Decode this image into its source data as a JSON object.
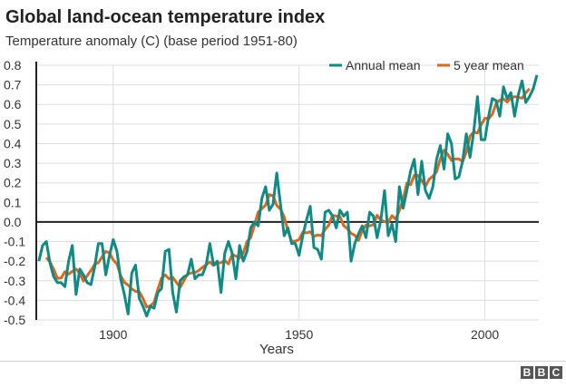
{
  "chart_data": {
    "type": "line",
    "title": "Global land-ocean temperature index",
    "subtitle": "Temperature anomaly (C) (base period 1951-80)",
    "xlabel": "Years",
    "ylabel": "",
    "xlim": [
      1879.3,
      2014.5
    ],
    "ylim": [
      -0.5,
      0.8
    ],
    "xticks": [
      1900,
      1950,
      2000
    ],
    "yticks": [
      0.8,
      0.7,
      0.6,
      0.5,
      0.4,
      0.3,
      0.2,
      0.1,
      0.0,
      -0.1,
      -0.2,
      -0.3,
      -0.4,
      -0.5
    ],
    "grid": true,
    "legend": "top-right",
    "x_start": 1880,
    "series": [
      {
        "name": "Annual mean",
        "color": "#0f8a85",
        "values": [
          -0.2,
          -0.12,
          -0.1,
          -0.21,
          -0.28,
          -0.31,
          -0.31,
          -0.33,
          -0.2,
          -0.12,
          -0.37,
          -0.24,
          -0.27,
          -0.31,
          -0.32,
          -0.23,
          -0.11,
          -0.11,
          -0.27,
          -0.17,
          -0.09,
          -0.15,
          -0.29,
          -0.37,
          -0.47,
          -0.26,
          -0.22,
          -0.39,
          -0.43,
          -0.48,
          -0.43,
          -0.44,
          -0.36,
          -0.34,
          -0.15,
          -0.14,
          -0.36,
          -0.46,
          -0.3,
          -0.28,
          -0.27,
          -0.19,
          -0.29,
          -0.27,
          -0.27,
          -0.22,
          -0.11,
          -0.22,
          -0.2,
          -0.36,
          -0.16,
          -0.1,
          -0.16,
          -0.29,
          -0.12,
          -0.2,
          -0.15,
          -0.03,
          0.0,
          -0.02,
          0.12,
          0.18,
          0.06,
          0.09,
          0.25,
          0.09,
          -0.07,
          -0.03,
          -0.11,
          -0.11,
          -0.17,
          -0.07,
          0.01,
          0.08,
          -0.13,
          -0.14,
          -0.19,
          0.05,
          0.06,
          0.03,
          -0.03,
          0.06,
          0.03,
          0.05,
          -0.2,
          -0.11,
          -0.06,
          -0.02,
          -0.08,
          0.05,
          0.03,
          -0.08,
          0.01,
          0.16,
          -0.07,
          -0.01,
          -0.1,
          0.18,
          0.07,
          0.16,
          0.26,
          0.32,
          0.14,
          0.31,
          0.16,
          0.12,
          0.18,
          0.32,
          0.39,
          0.27,
          0.45,
          0.4,
          0.22,
          0.23,
          0.31,
          0.45,
          0.33,
          0.46,
          0.64,
          0.42,
          0.42,
          0.54,
          0.63,
          0.62,
          0.54,
          0.69,
          0.63,
          0.66,
          0.54,
          0.65,
          0.72,
          0.61,
          0.64,
          0.68,
          0.75
        ]
      },
      {
        "name": "5 year mean",
        "color": "#e0661c",
        "window": 5
      }
    ]
  },
  "footer": {
    "logo": "BBC"
  }
}
